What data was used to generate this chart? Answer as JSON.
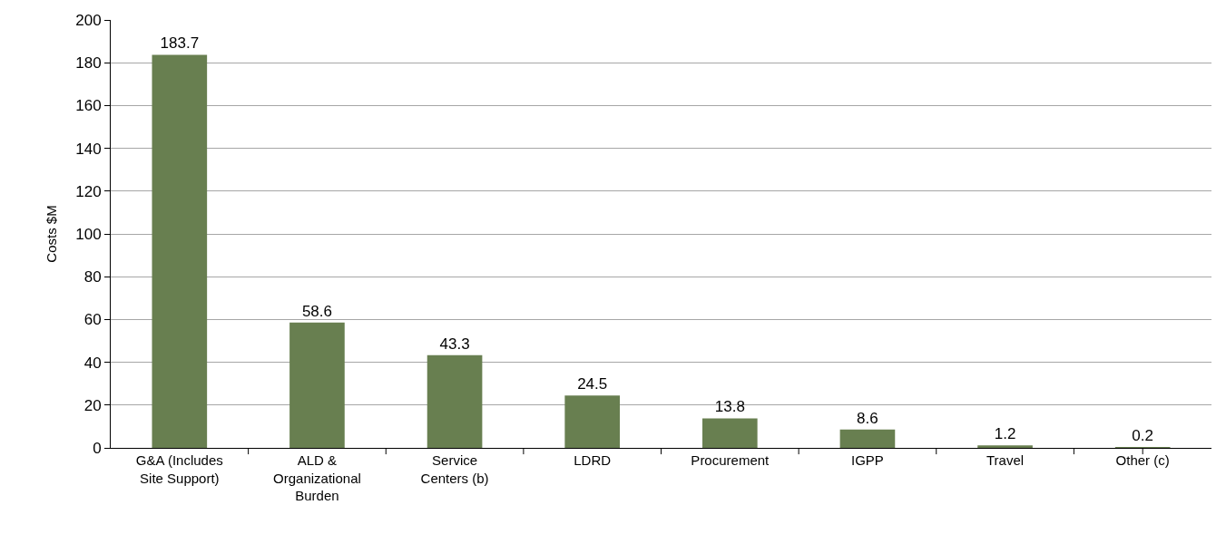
{
  "chart_data": {
    "type": "bar",
    "categories": [
      "G&A (Includes Site Support)",
      "ALD & Organizational Burden",
      "Service Centers (b)",
      "LDRD",
      "Procurement",
      "IGPP",
      "Travel",
      "Other (c)"
    ],
    "values": [
      183.7,
      58.6,
      43.3,
      24.5,
      13.8,
      8.6,
      1.2,
      0.2
    ],
    "color": "#687f50",
    "ylabel": "Costs $M",
    "ylim": [
      0,
      200
    ],
    "yticks": [
      0,
      20,
      40,
      60,
      80,
      100,
      120,
      140,
      160,
      180,
      200
    ],
    "grid": "y",
    "data_labels": true
  }
}
